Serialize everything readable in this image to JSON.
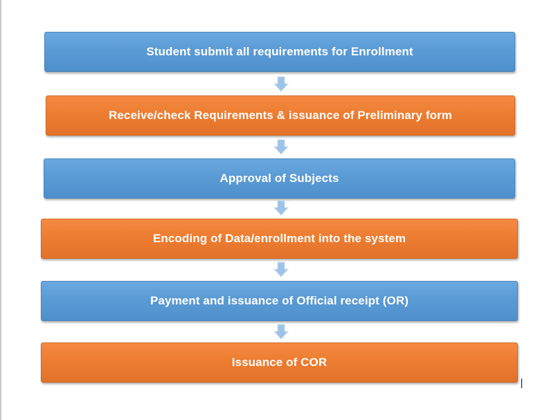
{
  "flowchart": {
    "steps": [
      {
        "label": "Student submit all requirements for Enrollment",
        "color": "#5b9bd5"
      },
      {
        "label": "Receive/check Requirements & issuance of Preliminary form",
        "color": "#ed7d31"
      },
      {
        "label": "Approval of Subjects",
        "color": "#5b9bd5"
      },
      {
        "label": "Encoding of Data/enrollment into the system",
        "color": "#ed7d31"
      },
      {
        "label": "Payment and issuance of Official receipt (OR)",
        "color": "#5b9bd5"
      },
      {
        "label": "Issuance of COR",
        "color": "#ed7d31"
      }
    ],
    "arrow_icon": "down-arrow-icon",
    "arrow_color": "#9dc3e6"
  }
}
